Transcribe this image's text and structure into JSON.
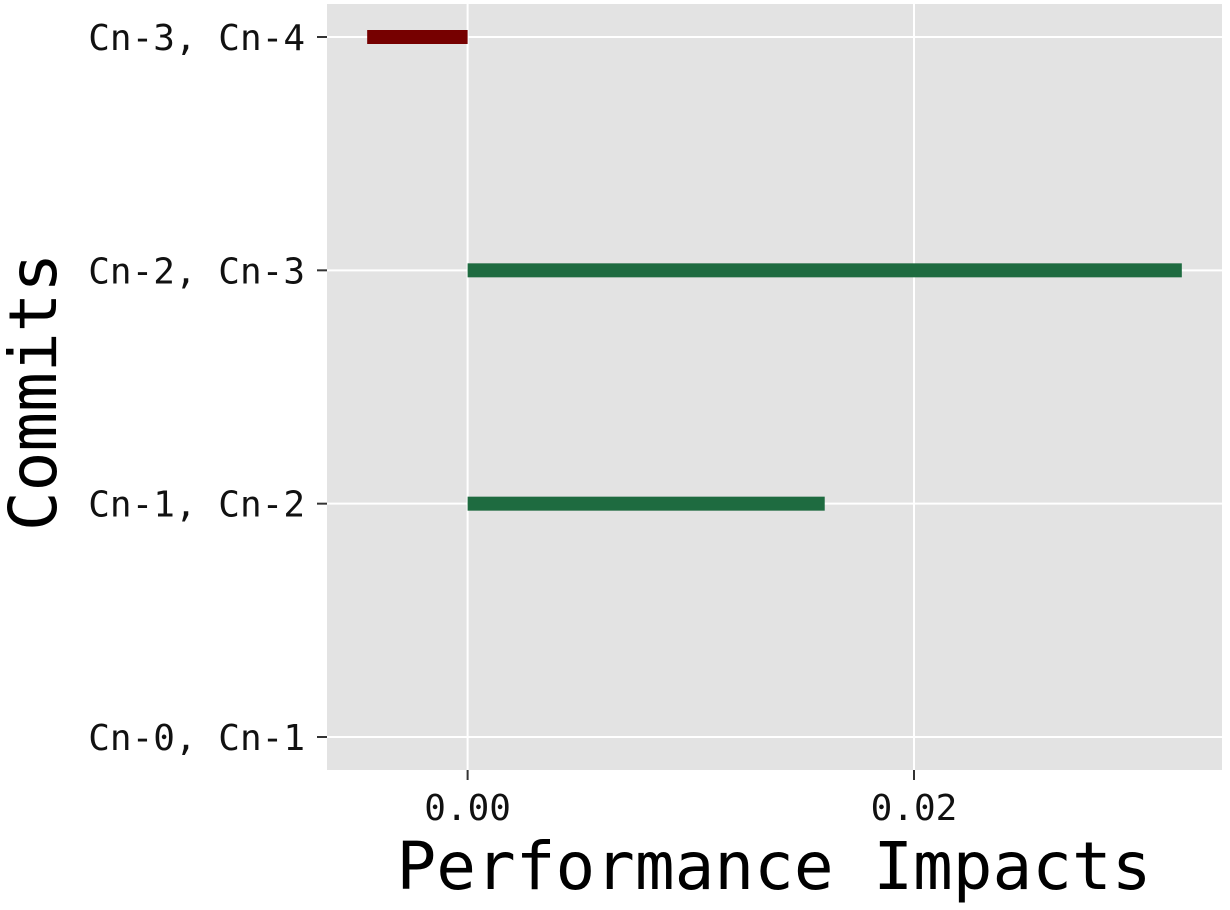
{
  "chart_data": {
    "type": "bar",
    "orientation": "horizontal",
    "xlabel": "Performance Impacts",
    "ylabel": "Commits",
    "categories": [
      "Cn-0, Cn-1",
      "Cn-1, Cn-2",
      "Cn-2, Cn-3",
      "Cn-3, Cn-4"
    ],
    "values": [
      0,
      0.016,
      0.032,
      -0.0045
    ],
    "xlim": [
      -0.0063,
      0.0338
    ],
    "xticks": [
      0,
      0.02
    ],
    "xtick_labels": [
      "0.00",
      "0.02"
    ],
    "grid": true,
    "legend": "none",
    "colors": {
      "positive": "#1e6b40",
      "negative": "#760000",
      "panel_background": "#e3e3e3",
      "grid": "#ffffff",
      "tick": "#333333"
    }
  }
}
